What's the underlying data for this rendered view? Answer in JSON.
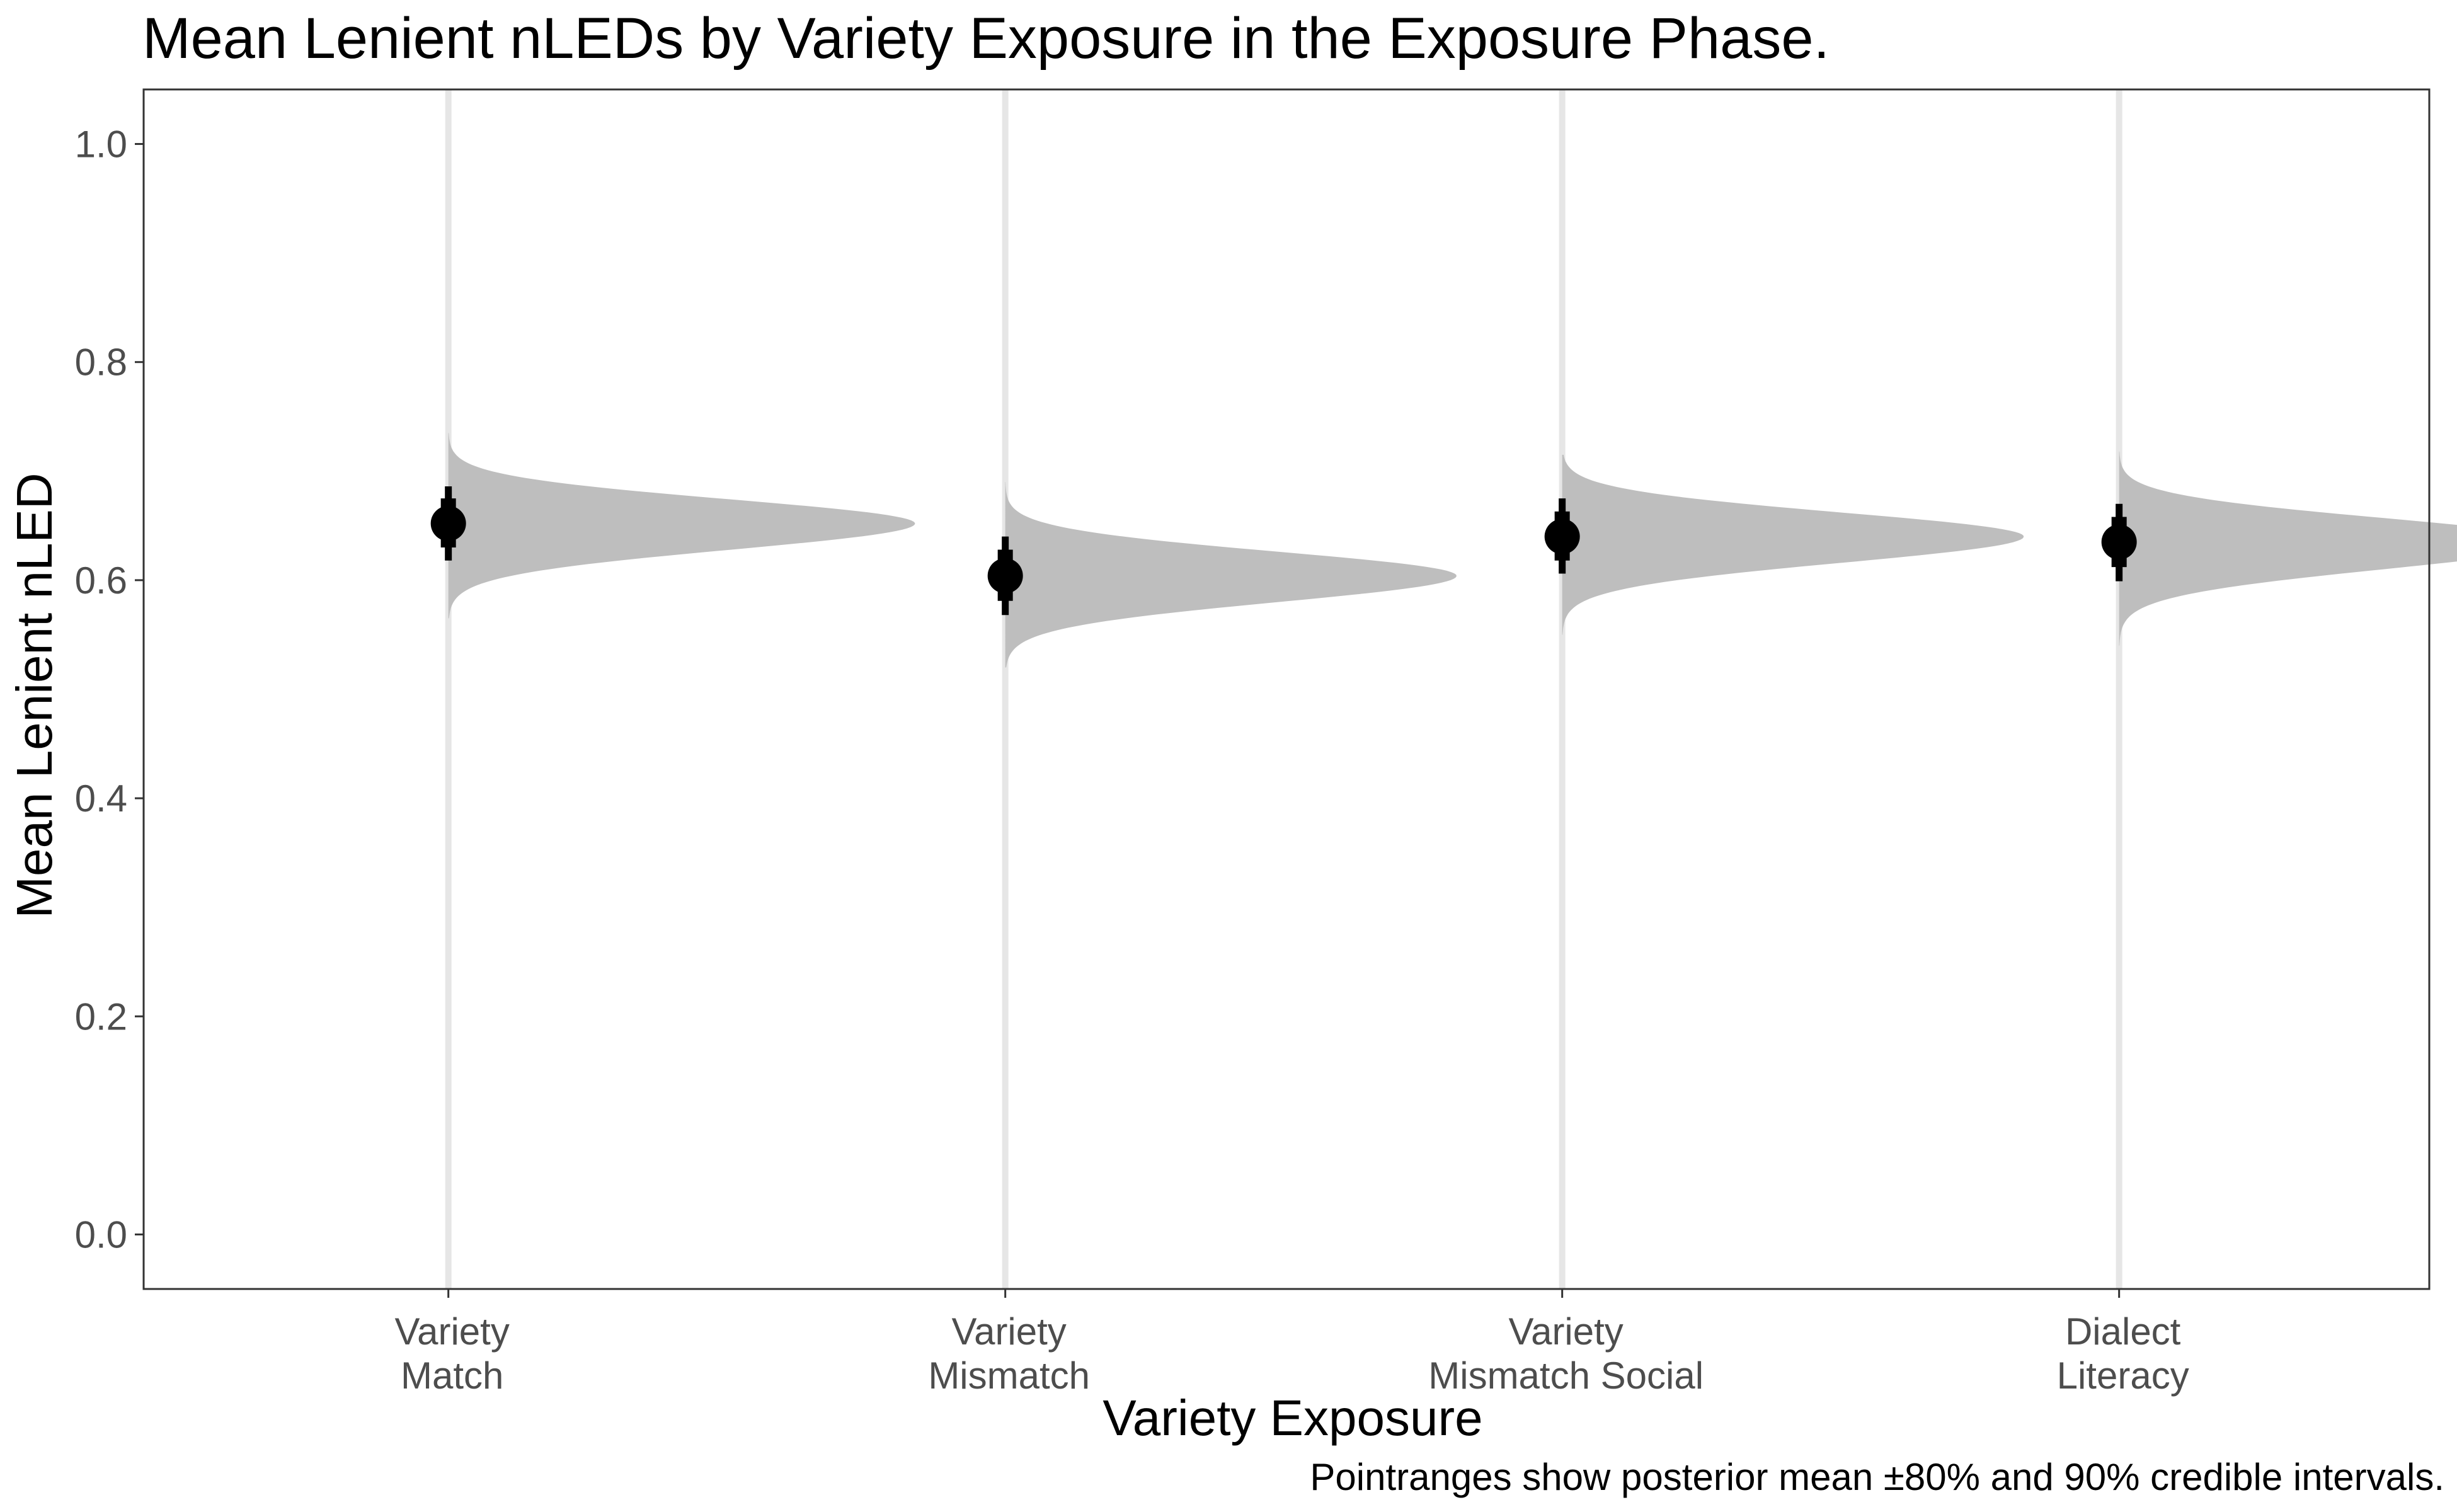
{
  "chart_data": {
    "type": "halfeye",
    "title": "Mean Lenient nLEDs by Variety Exposure in the Exposure Phase.",
    "xlabel": "Variety Exposure",
    "ylabel": "Mean Lenient nLED",
    "caption": "Pointranges show posterior mean ±80% and 90% credible intervals.",
    "ylim": [
      -0.05,
      1.05
    ],
    "yticks": [
      0.0,
      0.2,
      0.4,
      0.6,
      0.8,
      1.0
    ],
    "ytick_labels": [
      "0.0",
      "0.2",
      "0.4",
      "0.6",
      "0.8",
      "1.0"
    ],
    "grid": false,
    "categories": [
      {
        "label": [
          "Variety",
          "Match"
        ],
        "mean": 0.652,
        "ci80": [
          0.63,
          0.675
        ],
        "ci90": [
          0.618,
          0.686
        ],
        "dist_range": [
          0.565,
          0.735
        ],
        "dist_sd_lower": 0.024,
        "dist_sd_upper": 0.022,
        "peak_width": 0.91
      },
      {
        "label": [
          "Variety",
          "Mismatch"
        ],
        "mean": 0.604,
        "ci80": [
          0.581,
          0.628
        ],
        "ci90": [
          0.568,
          0.64
        ],
        "dist_range": [
          0.52,
          0.69
        ],
        "dist_sd_lower": 0.024,
        "dist_sd_upper": 0.022,
        "peak_width": 0.88
      },
      {
        "label": [
          "Variety",
          "Mismatch Social"
        ],
        "mean": 0.64,
        "ci80": [
          0.618,
          0.663
        ],
        "ci90": [
          0.606,
          0.675
        ],
        "dist_range": [
          0.55,
          0.715
        ],
        "dist_sd_lower": 0.024,
        "dist_sd_upper": 0.022,
        "peak_width": 0.9
      },
      {
        "label": [
          "Dialect",
          "Literacy"
        ],
        "mean": 0.635,
        "ci80": [
          0.612,
          0.658
        ],
        "ci90": [
          0.599,
          0.67
        ],
        "dist_range": [
          0.54,
          0.718
        ],
        "dist_sd_lower": 0.025,
        "dist_sd_upper": 0.022,
        "peak_width": 0.85
      }
    ],
    "colors": {
      "distribution": "#bebebe",
      "point": "#000000",
      "category_line": "#e6e6e6",
      "panel_border": "#333333",
      "tick": "#333333"
    }
  }
}
